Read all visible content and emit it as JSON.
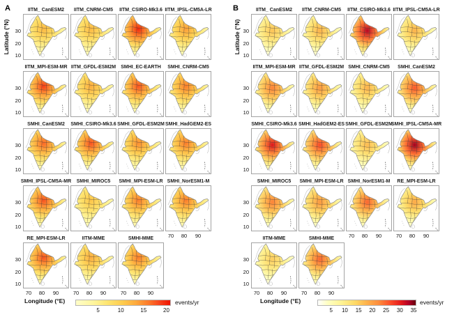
{
  "figure": {
    "panels": [
      {
        "label": "A"
      },
      {
        "label": "B"
      }
    ]
  },
  "chart_data": [
    {
      "panel": "A",
      "type": "heatmap",
      "region": "India",
      "units": "events/yr",
      "x": {
        "label": "Longitude (°E)",
        "ticks": [
          70,
          80,
          90
        ]
      },
      "y": {
        "label": "Latitude (°N)",
        "ticks": [
          30,
          20,
          10
        ]
      },
      "colorbar": {
        "label": "events/yr",
        "ticks": [
          5,
          10,
          15,
          20
        ],
        "vmin": 0,
        "vmax": 21,
        "colors": [
          [
            0,
            "#fffdc8"
          ],
          [
            0.18,
            "#fff69e"
          ],
          [
            0.34,
            "#fee46f"
          ],
          [
            0.5,
            "#fecb4d"
          ],
          [
            0.64,
            "#fda83c"
          ],
          [
            0.77,
            "#fc7a2b"
          ],
          [
            0.89,
            "#f8421c"
          ],
          [
            1,
            "#ee1300"
          ]
        ]
      },
      "grid_columns": 4,
      "maps": [
        {
          "label": "IITM_ CanESM2",
          "peak_events_per_yr": 12
        },
        {
          "label": "IITM_CNRM-CM5",
          "peak_events_per_yr": 12
        },
        {
          "label": "IITM_CSIRO-Mk3.6",
          "peak_events_per_yr": 20
        },
        {
          "label": "IITM_IPSL-CM5A-LR",
          "peak_events_per_yr": 14
        },
        {
          "label": "IITM_MPI-ESM-MR",
          "peak_events_per_yr": 19
        },
        {
          "label": "IITM_GFDL-ESM2M",
          "peak_events_per_yr": 13
        },
        {
          "label": "SMHI_EC-EARTH",
          "peak_events_per_yr": 18
        },
        {
          "label": "SMHI_CNRM-CM5",
          "peak_events_per_yr": 16
        },
        {
          "label": "SMHI_CanESM2",
          "peak_events_per_yr": 17
        },
        {
          "label": "SMHI_CSIRO-Mk3.6",
          "peak_events_per_yr": 18
        },
        {
          "label": "SMHI_GFDL-ESM2M",
          "peak_events_per_yr": 15
        },
        {
          "label": "SMHI_HadGEM2-ES",
          "peak_events_per_yr": 16
        },
        {
          "label": "SMHI_IPSL-CM5A-MR",
          "peak_events_per_yr": 18
        },
        {
          "label": "SMHI_MIROC5",
          "peak_events_per_yr": 11
        },
        {
          "label": "SMHI_MPI-ESM-LR",
          "peak_events_per_yr": 16
        },
        {
          "label": "SMHI_NorESM1-M",
          "peak_events_per_yr": 16
        },
        {
          "label": "RE_MPI-ESM-LR",
          "peak_events_per_yr": 18
        },
        {
          "label": "IITM-MME",
          "peak_events_per_yr": 13
        },
        {
          "label": "SMHI-MME",
          "peak_events_per_yr": 16
        }
      ]
    },
    {
      "panel": "B",
      "type": "heatmap",
      "region": "India",
      "units": "events/yr",
      "x": {
        "label": "Longitude (°E)",
        "ticks": [
          70,
          80,
          90
        ]
      },
      "y": {
        "label": "Latitude (°N)",
        "ticks": [
          30,
          20,
          10
        ]
      },
      "colorbar": {
        "label": "events/yr",
        "ticks": [
          5,
          10,
          15,
          20,
          25,
          30,
          35
        ],
        "vmin": 0,
        "vmax": 36,
        "colors": [
          [
            0,
            "#ffffff"
          ],
          [
            0.1,
            "#ffffc2"
          ],
          [
            0.24,
            "#fff394"
          ],
          [
            0.38,
            "#fed966"
          ],
          [
            0.5,
            "#feb24c"
          ],
          [
            0.62,
            "#fd8d3c"
          ],
          [
            0.74,
            "#fc4e2a"
          ],
          [
            0.85,
            "#e31a1c"
          ],
          [
            0.93,
            "#b10026"
          ],
          [
            1,
            "#67000d"
          ]
        ]
      },
      "grid_columns": 4,
      "maps": [
        {
          "label": "IITM_ CanESM2",
          "peak_events_per_yr": 16
        },
        {
          "label": "IITM_CNRM-CM5",
          "peak_events_per_yr": 18
        },
        {
          "label": "IITM_CSIRO-Mk3.6",
          "peak_events_per_yr": 33
        },
        {
          "label": "IITM_IPSL-CM5A-LR",
          "peak_events_per_yr": 18
        },
        {
          "label": "IITM_MPI-ESM-MR",
          "peak_events_per_yr": 23
        },
        {
          "label": "IITM_GFDL-ESM2M",
          "peak_events_per_yr": 21
        },
        {
          "label": "SMHI_CNRM-CM5",
          "peak_events_per_yr": 18
        },
        {
          "label": "SMHI_CanESM2",
          "peak_events_per_yr": 26
        },
        {
          "label": "SMHI_CSIRO-Mk3.6",
          "peak_events_per_yr": 31
        },
        {
          "label": "SMHI_HadGEM2-ES",
          "peak_events_per_yr": 27
        },
        {
          "label": "SMHI_GFDL-ESM2M",
          "peak_events_per_yr": 17
        },
        {
          "label": "SMHI_IPSL-CM5A-MR",
          "peak_events_per_yr": 34
        },
        {
          "label": "SMHI_MIROC5",
          "peak_events_per_yr": 23
        },
        {
          "label": "SMHI_MPI-ESM-LR",
          "peak_events_per_yr": 21
        },
        {
          "label": "SMHI_NorESM1-M",
          "peak_events_per_yr": 25
        },
        {
          "label": "RE_MPI-ESM-LR",
          "peak_events_per_yr": 19
        },
        {
          "label": "IITM-MME",
          "peak_events_per_yr": 15
        },
        {
          "label": "SMHI-MME",
          "peak_events_per_yr": 25
        }
      ]
    }
  ]
}
